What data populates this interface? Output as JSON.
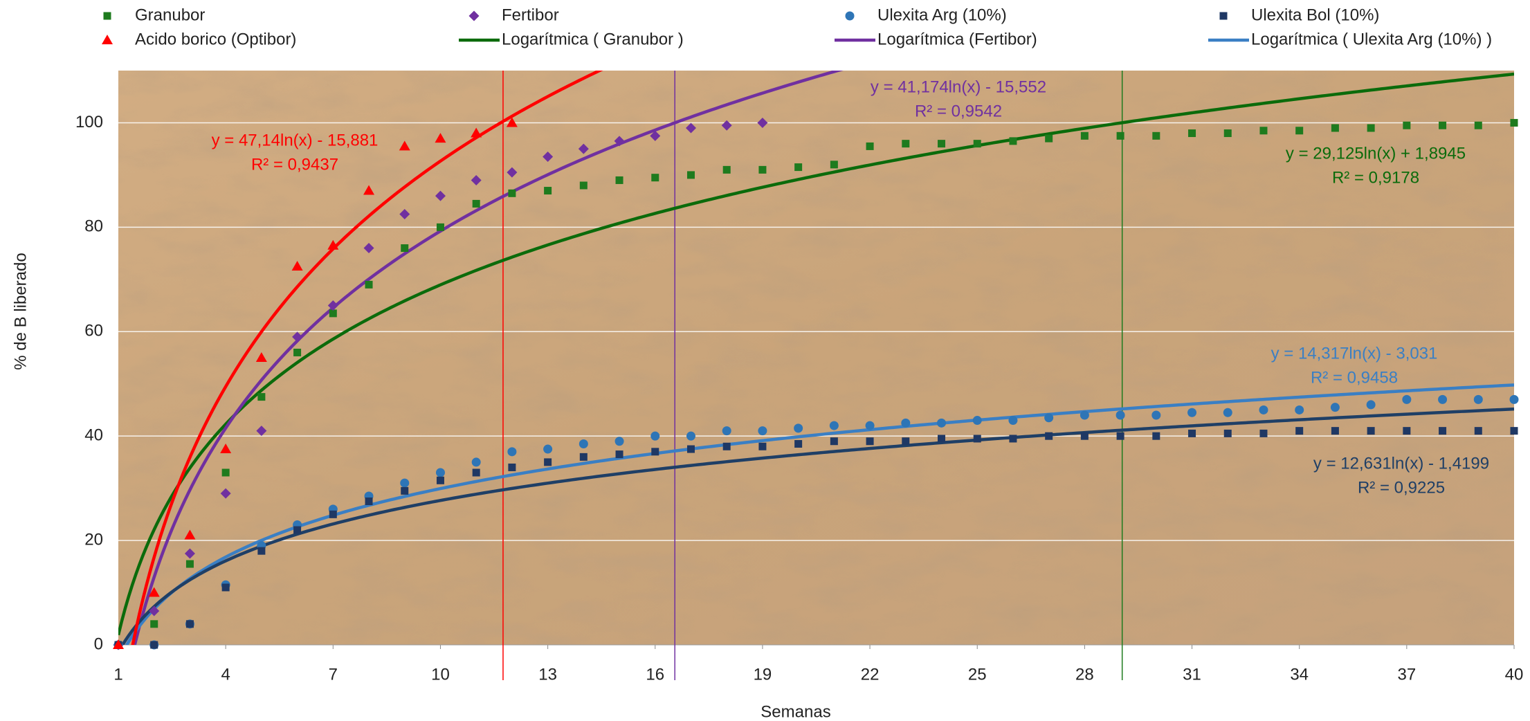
{
  "chart_data": {
    "type": "scatter",
    "x_label": "Semanas",
    "y_label": "% de B liberado",
    "xlim": [
      1,
      40
    ],
    "xticks": [
      1,
      4,
      7,
      10,
      13,
      16,
      19,
      22,
      25,
      28,
      31,
      34,
      37,
      40
    ],
    "ylim": [
      0,
      110
    ],
    "yticks": [
      0,
      20,
      40,
      60,
      80,
      100
    ],
    "grid": true,
    "series": [
      {
        "name": "Granubor",
        "color": "#1e7b1e",
        "marker": "square",
        "x": [
          1,
          2,
          3,
          4,
          5,
          6,
          7,
          8,
          9,
          10,
          11,
          12,
          13,
          14,
          15,
          16,
          17,
          18,
          19,
          20,
          21,
          22,
          23,
          24,
          25,
          26,
          27,
          28,
          29,
          30,
          31,
          32,
          33,
          34,
          35,
          36,
          37,
          38,
          39,
          40
        ],
        "values": [
          0,
          4,
          15.5,
          33,
          47.5,
          56,
          63.5,
          69,
          76,
          80,
          84.5,
          86.5,
          87,
          88,
          89,
          89.5,
          90,
          91,
          91,
          91.5,
          92,
          95.5,
          96,
          96,
          96,
          96.5,
          97,
          97.5,
          97.5,
          97.5,
          98,
          98,
          98.5,
          98.5,
          99,
          99,
          99.5,
          99.5,
          99.5,
          100
        ]
      },
      {
        "name": "Fertibor",
        "color": "#7030a0",
        "marker": "diamond",
        "x": [
          1,
          2,
          3,
          4,
          5,
          6,
          7,
          8,
          9,
          10,
          11,
          12,
          13,
          14,
          15,
          16,
          17,
          18,
          19
        ],
        "values": [
          0,
          6.5,
          17.5,
          29,
          41,
          59,
          65,
          76,
          82.5,
          86,
          89,
          90.5,
          93.5,
          95,
          96.5,
          97.5,
          99,
          99.5,
          100
        ]
      },
      {
        "name": "Ulexita Arg (10%)",
        "color": "#2e75b6",
        "marker": "circle",
        "x": [
          1,
          2,
          3,
          4,
          5,
          6,
          7,
          8,
          9,
          10,
          11,
          12,
          13,
          14,
          15,
          16,
          17,
          18,
          19,
          20,
          21,
          22,
          23,
          24,
          25,
          26,
          27,
          28,
          29,
          30,
          31,
          32,
          33,
          34,
          35,
          36,
          37,
          38,
          39,
          40
        ],
        "values": [
          0,
          0,
          4,
          11.5,
          19,
          23,
          26,
          28.5,
          31,
          33,
          35,
          37,
          37.5,
          38.5,
          39,
          40,
          40,
          41,
          41,
          41.5,
          42,
          42,
          42.5,
          42.5,
          43,
          43,
          43.5,
          44,
          44,
          44,
          44.5,
          44.5,
          45,
          45,
          45.5,
          46,
          47,
          47,
          47,
          47
        ]
      },
      {
        "name": "Ulexita Bol (10%)",
        "color": "#1f3864",
        "marker": "square",
        "x": [
          1,
          2,
          3,
          4,
          5,
          6,
          7,
          8,
          9,
          10,
          11,
          12,
          13,
          14,
          15,
          16,
          17,
          18,
          19,
          20,
          21,
          22,
          23,
          24,
          25,
          26,
          27,
          28,
          29,
          30,
          31,
          32,
          33,
          34,
          35,
          36,
          37,
          38,
          39,
          40
        ],
        "values": [
          0,
          0,
          4,
          11,
          18,
          22,
          25,
          27.5,
          29.5,
          31.5,
          33,
          34,
          35,
          36,
          36.5,
          37,
          37.5,
          38,
          38,
          38.5,
          39,
          39,
          39,
          39.5,
          39.5,
          39.5,
          40,
          40,
          40,
          40,
          40.5,
          40.5,
          40.5,
          41,
          41,
          41,
          41,
          41,
          41,
          41
        ]
      },
      {
        "name": "Acido borico (Optibor)",
        "color": "#ff0000",
        "marker": "triangle",
        "x": [
          1,
          2,
          3,
          4,
          5,
          6,
          7,
          8,
          9,
          10,
          11,
          12
        ],
        "values": [
          0,
          10,
          21,
          37.5,
          55,
          72.5,
          76.5,
          87,
          95.5,
          97,
          98,
          100
        ]
      }
    ],
    "trendlines": [
      {
        "name": "Logarítmica ( Granubor )",
        "color": "#0b6b0b",
        "a": 29.125,
        "b": 1.8945,
        "equation": "y = 29,125ln(x) + 1,8945",
        "r2": "R² = 0,9178"
      },
      {
        "name": "Logarítmica (Fertibor)",
        "color": "#7030a0",
        "a": 41.174,
        "b": -15.552,
        "equation": "y = 41,174ln(x) - 15,552",
        "r2": "R² = 0,9542"
      },
      {
        "name": "Logarítmica ( Ulexita Arg (10%) )",
        "color": "#3a7fc4",
        "a": 14.317,
        "b": -3.031,
        "equation": "y = 14,317ln(x) - 3,031",
        "r2": "R² = 0,9458"
      },
      {
        "color": "#1f3f66",
        "a": 12.631,
        "b": -1.4199,
        "equation": "y = 12,631ln(x) - 1,4199",
        "r2": "R² = 0,9225"
      },
      {
        "color": "#ff0000",
        "a": 47.14,
        "b": -15.881,
        "equation": "y = 47,14ln(x) - 15,881",
        "r2": "R² = 0,9437"
      }
    ],
    "vlines": [
      {
        "x": 11.75,
        "color": "#ff0000"
      },
      {
        "x": 16.55,
        "color": "#7030a0"
      },
      {
        "x": 29.05,
        "color": "#1e7b1e"
      }
    ]
  }
}
